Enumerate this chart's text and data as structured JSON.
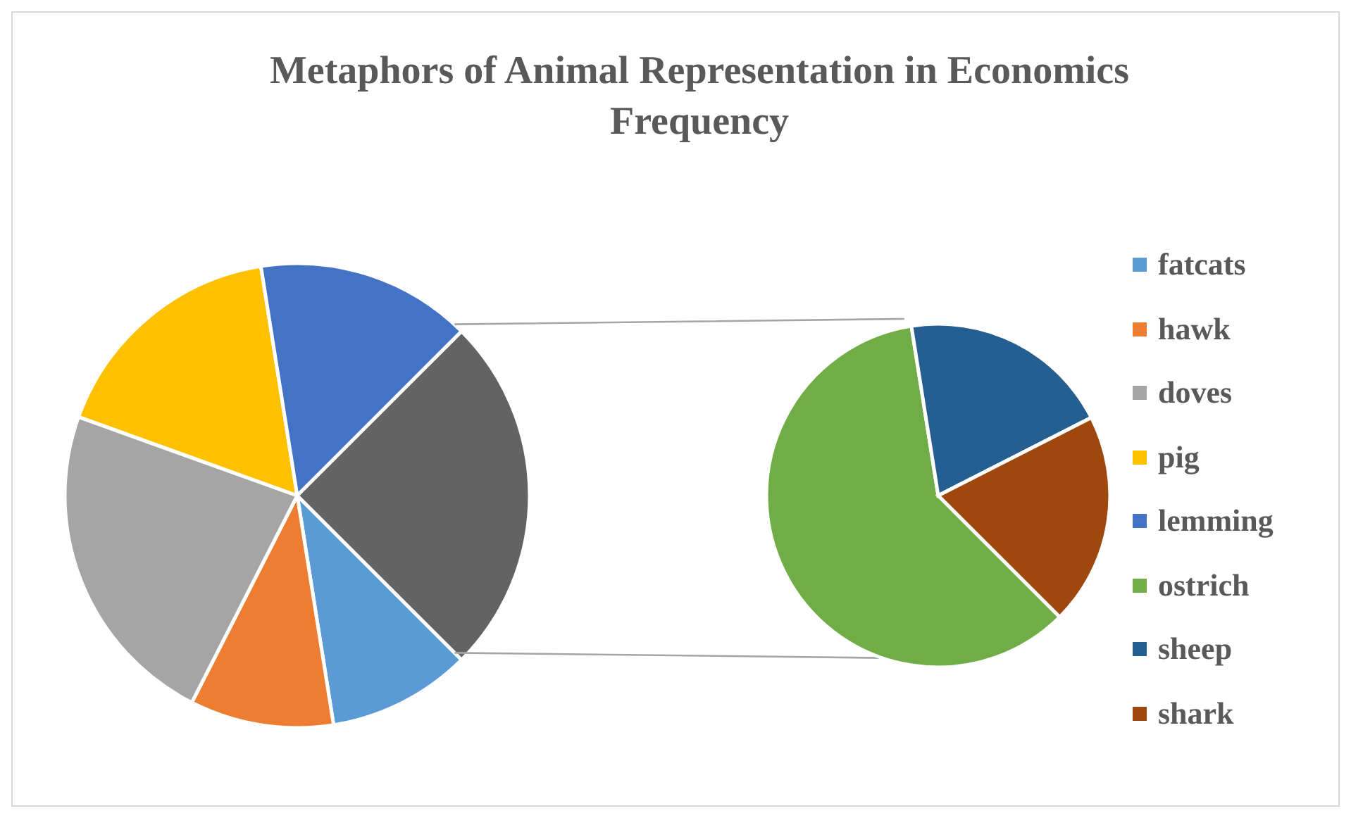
{
  "chart_data": [
    {
      "type": "pie",
      "title": "Metaphors of Animal Representation in Economics Frequency",
      "categories": [
        "fatcats",
        "hawk",
        "doves",
        "pig",
        "lemming",
        null
      ],
      "values": [
        10,
        10,
        23,
        17,
        15,
        25
      ],
      "colors": [
        "#5b9bd5",
        "#ed7d31",
        "#a5a5a5",
        "#ffc000",
        "#4472c4",
        "#636363"
      ],
      "legend": "right"
    },
    {
      "type": "pie",
      "categories": [
        "ostrich",
        "sheep",
        "shark"
      ],
      "values": [
        60,
        20,
        20
      ],
      "colors": [
        "#70ad47",
        "#255e91",
        "#9e480e"
      ],
      "legend": "right"
    }
  ]
}
